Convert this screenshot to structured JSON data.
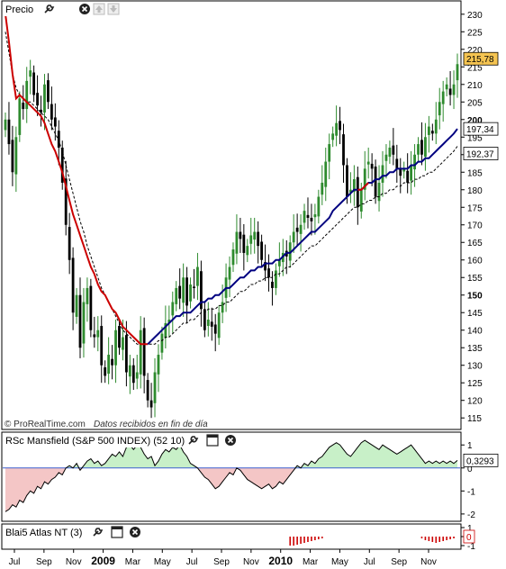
{
  "price_panel": {
    "title": "Precio",
    "watermark": "© ProRealTime.com",
    "note": "Datos recibidos en fin de día",
    "yticks": [
      "230",
      "225",
      "220",
      "215",
      "210",
      "205",
      "200",
      "195",
      "190",
      "185",
      "180",
      "175",
      "170",
      "165",
      "160",
      "155",
      "150",
      "145",
      "140",
      "135",
      "130",
      "125",
      "120",
      "115"
    ],
    "yticks_bold": [
      "200",
      "150"
    ],
    "last_price": "215,78",
    "ma_blue_value": "197,34",
    "ma_dashed_value": "192,37"
  },
  "rsc_panel": {
    "title": "RSc Mansfield (S&P 500 INDEX) (52 10)",
    "yticks": [
      "1",
      "0",
      "-1",
      "-2"
    ],
    "last_value": "0,3293"
  },
  "blai_panel": {
    "title": "Blai5 Atlas NT (3)",
    "yticks": [
      "1",
      "0",
      "-1"
    ],
    "last_value": "0"
  },
  "x_axis": {
    "labels": [
      "Jul",
      "Sep",
      "Nov",
      "2009",
      "Mar",
      "May",
      "Jul",
      "Sep",
      "Nov",
      "2010",
      "Mar",
      "May",
      "Jul",
      "Sep",
      "Nov"
    ],
    "bold": [
      "2009",
      "2010"
    ]
  },
  "icons": [
    "wrench-icon",
    "window-icon",
    "close-icon",
    "up-arrow-icon",
    "down-arrow-icon"
  ],
  "colors": {
    "bull": "#2e8b2e",
    "bear": "#000000",
    "ma_red": "#cc0000",
    "ma_blue": "#000080",
    "last_price_bg": "#f5c451",
    "rsc_pos_fill": "#c8f0c8",
    "rsc_neg_fill": "#f4c6c6",
    "blai_bar": "#cc0000"
  },
  "chart_data": [
    {
      "type": "candlestick",
      "weekly_close": [
        200,
        193,
        185,
        195,
        206,
        203,
        211,
        214,
        207,
        204,
        202,
        210,
        205,
        200,
        198,
        192,
        182,
        170,
        160,
        145,
        150,
        135,
        148,
        152,
        140,
        138,
        140,
        130,
        127,
        133,
        130,
        140,
        135,
        138,
        128,
        130,
        125,
        128,
        140,
        127,
        120,
        118,
        128,
        133,
        139,
        142,
        143,
        148,
        152,
        149,
        155,
        147,
        153,
        152,
        158,
        146,
        140,
        143,
        141,
        139,
        145,
        148,
        155,
        158,
        163,
        168,
        166,
        162,
        164,
        167,
        168,
        164,
        160,
        157,
        155,
        152,
        157,
        160,
        162,
        161,
        165,
        168,
        168,
        170,
        174,
        172,
        171,
        173,
        178,
        182,
        188,
        193,
        196,
        199,
        197,
        187,
        178,
        180,
        183,
        175,
        180,
        186,
        188,
        186,
        178,
        182,
        187,
        190,
        192,
        190,
        186,
        184,
        186,
        182,
        187,
        190,
        193,
        190,
        195,
        198,
        196,
        200,
        205,
        208,
        210,
        207,
        210,
        215.78
      ],
      "ma_red": [
        230,
        222,
        213,
        206,
        207,
        206,
        205,
        204,
        203,
        202,
        201,
        199,
        196,
        193,
        191,
        188,
        185,
        181,
        177,
        173,
        170,
        167,
        164,
        161,
        158,
        156,
        153,
        151,
        150,
        148,
        146,
        145,
        143,
        141,
        140,
        139,
        138,
        137,
        136,
        136,
        136,
        137,
        138,
        139,
        140,
        141,
        142,
        143,
        144,
        144,
        145,
        145,
        145,
        146,
        147,
        148,
        148,
        149,
        149,
        150,
        150,
        151,
        152,
        152,
        153,
        154,
        155,
        155,
        156,
        157,
        157,
        158,
        158,
        159,
        159,
        159,
        160,
        160,
        161,
        162,
        162,
        163,
        164,
        165,
        166,
        167,
        168,
        168,
        169,
        170,
        171,
        172,
        174,
        175,
        176,
        177,
        178,
        179,
        180,
        180,
        180,
        181,
        182,
        182,
        183,
        183,
        184,
        184,
        185,
        185,
        186,
        186,
        186,
        186,
        187,
        187,
        188,
        188,
        189,
        189,
        190,
        191,
        192,
        193,
        194,
        195,
        196,
        197.34
      ],
      "ma_dashed": [
        225,
        219,
        213,
        209,
        207,
        206,
        205,
        205,
        204,
        203,
        202,
        201,
        200,
        198,
        196,
        194,
        191,
        187,
        183,
        179,
        175,
        171,
        168,
        164,
        161,
        158,
        155,
        152,
        150,
        148,
        146,
        144,
        142,
        140,
        139,
        138,
        137,
        136,
        136,
        136,
        136,
        136,
        136,
        137,
        137,
        138,
        138,
        139,
        140,
        141,
        142,
        142,
        143,
        143,
        144,
        145,
        145,
        146,
        146,
        146,
        147,
        147,
        148,
        148,
        149,
        150,
        151,
        151,
        152,
        153,
        153,
        154,
        154,
        155,
        155,
        155,
        156,
        156,
        157,
        158,
        158,
        159,
        160,
        161,
        162,
        163,
        164,
        164,
        165,
        166,
        167,
        168,
        169,
        170,
        171,
        172,
        173,
        174,
        175,
        175,
        176,
        176,
        177,
        177,
        178,
        178,
        179,
        179,
        180,
        180,
        181,
        181,
        182,
        182,
        182,
        183,
        183,
        184,
        184,
        185,
        185,
        186,
        187,
        188,
        189,
        190,
        191,
        192.37
      ],
      "ylim": [
        113,
        232
      ]
    },
    {
      "type": "area",
      "name": "RSc Mansfield",
      "values": [
        -1.9,
        -1.8,
        -1.6,
        -1.7,
        -1.4,
        -1.5,
        -1.2,
        -1.0,
        -1.1,
        -0.8,
        -0.9,
        -0.6,
        -0.7,
        -0.5,
        -0.4,
        -0.2,
        -0.3,
        0.0,
        0.1,
        0.0,
        0.2,
        -0.1,
        0.1,
        0.3,
        0.4,
        0.2,
        0.3,
        0.1,
        0.2,
        0.4,
        0.6,
        0.5,
        0.7,
        0.5,
        0.9,
        1.0,
        0.8,
        1.0,
        0.9,
        0.6,
        0.4,
        0.5,
        0.1,
        0.3,
        0.6,
        0.8,
        0.7,
        0.9,
        0.8,
        1.0,
        0.7,
        0.5,
        0.2,
        0.1,
        0.0,
        -0.2,
        -0.4,
        -0.5,
        -0.7,
        -0.9,
        -0.8,
        -0.6,
        -0.4,
        -0.2,
        -0.3,
        0.0,
        -0.1,
        -0.3,
        -0.5,
        -0.6,
        -0.7,
        -0.8,
        -0.9,
        -0.8,
        -0.7,
        -0.9,
        -0.8,
        -0.6,
        -0.7,
        -0.5,
        -0.3,
        -0.1,
        0.1,
        0.0,
        0.2,
        0.1,
        0.3,
        0.2,
        0.4,
        0.5,
        0.7,
        0.9,
        1.0,
        1.1,
        1.0,
        0.8,
        0.6,
        0.5,
        0.7,
        0.9,
        1.1,
        1.2,
        1.1,
        1.0,
        0.9,
        0.8,
        1.0,
        0.9,
        0.8,
        0.7,
        0.6,
        0.7,
        0.8,
        0.9,
        1.0,
        0.8,
        0.6,
        0.4,
        0.2,
        0.3,
        0.2,
        0.3,
        0.2,
        0.3,
        0.2,
        0.3,
        0.2,
        0.3293
      ],
      "ylim": [
        -2.2,
        1.4
      ]
    },
    {
      "type": "bar",
      "name": "Blai5 Atlas NT",
      "values": [
        0,
        0,
        0,
        0,
        0,
        0,
        0,
        0,
        0,
        0,
        0,
        0,
        0,
        0,
        0,
        0,
        0,
        0,
        0,
        0,
        0,
        0,
        0,
        0,
        0,
        0,
        0,
        0,
        0,
        0,
        0,
        0,
        0,
        0,
        0,
        0,
        0,
        0,
        0,
        0,
        0,
        0,
        0,
        0,
        0,
        0,
        0,
        0,
        0,
        0,
        0,
        0,
        0,
        0,
        0,
        0,
        0,
        0,
        0,
        0,
        0,
        0,
        0,
        0,
        0,
        0,
        0,
        0,
        0,
        0,
        0,
        0,
        0,
        0,
        0,
        0,
        0,
        0,
        0,
        0,
        -1,
        -1,
        -0.9,
        -0.8,
        -0.7,
        -0.6,
        -0.5,
        -0.4,
        -0.3,
        -0.2,
        0,
        0,
        0,
        0,
        0,
        0,
        0,
        0,
        0,
        0,
        0,
        0,
        0,
        0,
        0,
        0,
        0,
        0,
        0,
        0,
        0,
        0,
        0,
        0,
        0,
        0,
        0,
        -0.2,
        -0.4,
        -0.5,
        -0.6,
        -0.7,
        -0.6,
        -0.5,
        -0.4,
        -0.3,
        -0.2,
        0
      ],
      "ylim": [
        -1.2,
        1.2
      ]
    }
  ]
}
